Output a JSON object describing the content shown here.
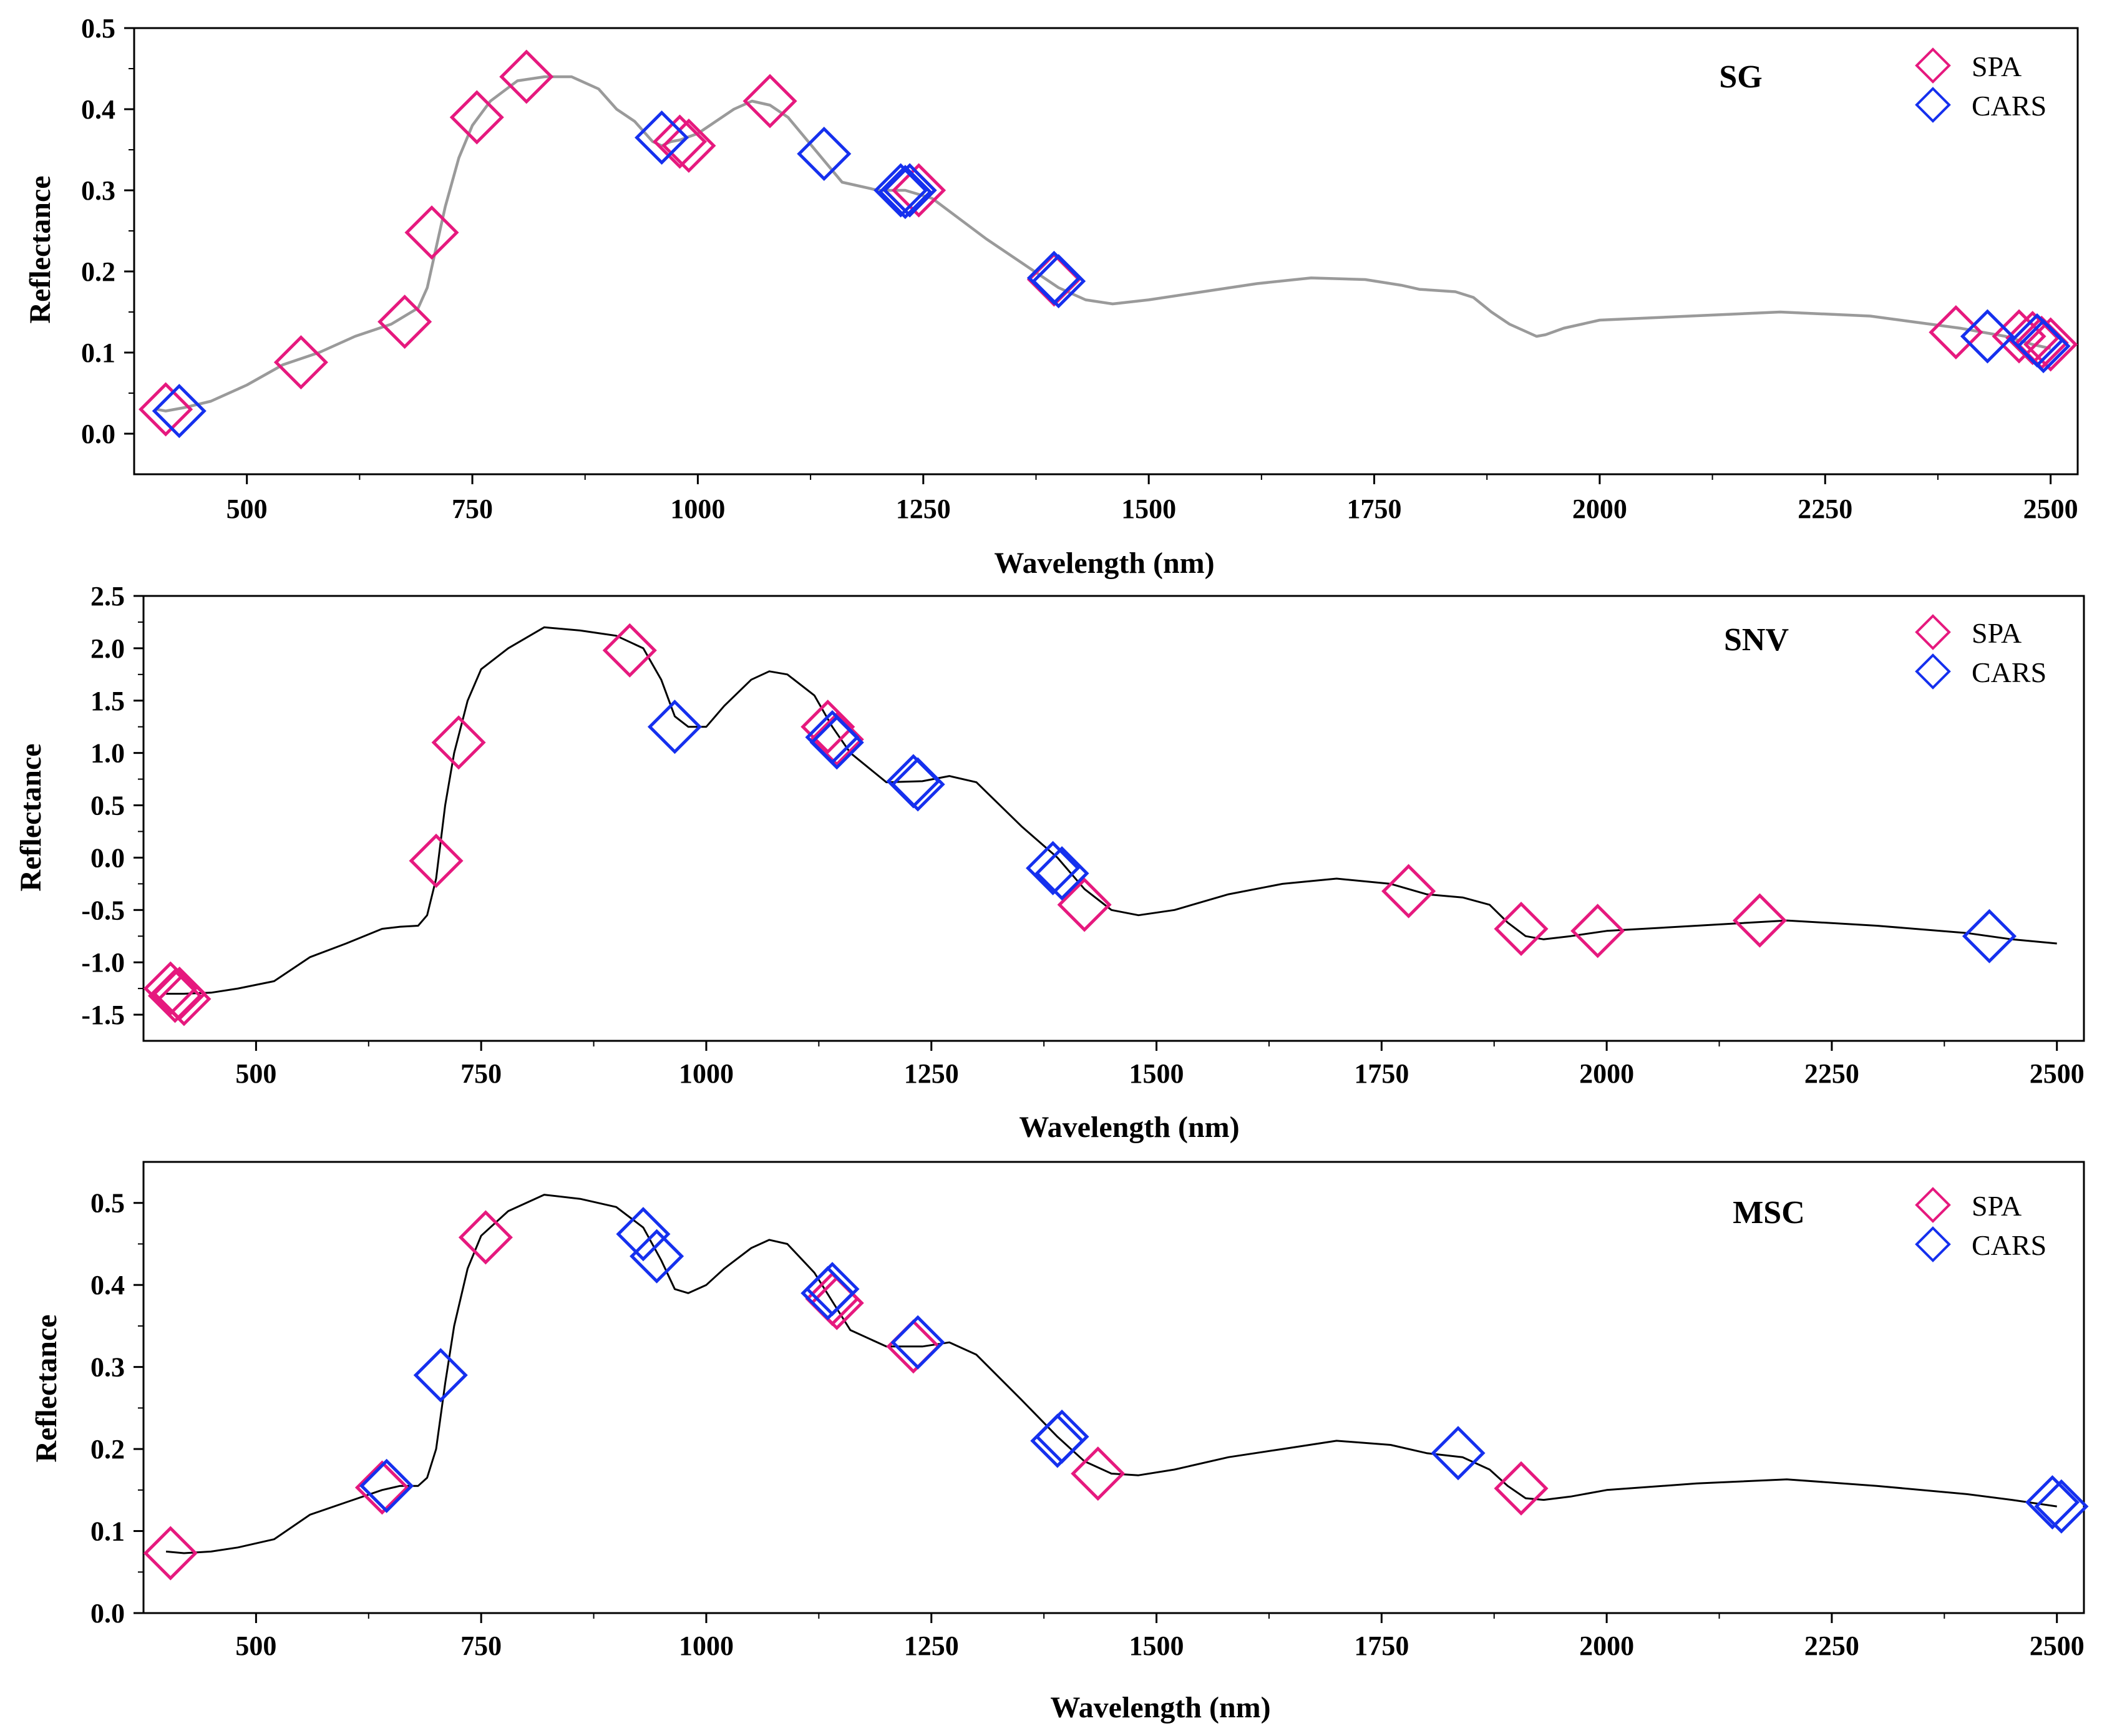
{
  "colors": {
    "spa": "#e6197e",
    "cars": "#1530ee",
    "sg_line": "#9a9a9a",
    "line": "#000000",
    "axis": "#000000"
  },
  "legend": {
    "spa_label": "SPA",
    "cars_label": "CARS"
  },
  "chart_data": [
    {
      "type": "line",
      "title": "SG",
      "xlabel": "Wavelength (nm)",
      "ylabel": "Reflectance",
      "xlim": [
        375,
        2530
      ],
      "ylim": [
        -0.05,
        0.5
      ],
      "xticks": [
        500,
        750,
        1000,
        1250,
        1500,
        1750,
        2000,
        2250,
        2500
      ],
      "yticks": [
        0.0,
        0.1,
        0.2,
        0.3,
        0.4,
        0.5
      ],
      "ytick_labels": [
        "0.0",
        "0.1",
        "0.2",
        "0.3",
        "0.4",
        "0.5"
      ],
      "legend_position": "top-right",
      "spectrum": {
        "x": [
          400,
          410,
          430,
          460,
          500,
          540,
          580,
          620,
          660,
          690,
          700,
          710,
          720,
          735,
          750,
          770,
          800,
          830,
          860,
          890,
          910,
          930,
          950,
          960,
          970,
          980,
          1000,
          1020,
          1040,
          1060,
          1080,
          1100,
          1130,
          1160,
          1200,
          1230,
          1260,
          1290,
          1320,
          1360,
          1400,
          1430,
          1460,
          1500,
          1560,
          1620,
          1680,
          1740,
          1780,
          1800,
          1840,
          1860,
          1880,
          1900,
          1920,
          1930,
          1940,
          1960,
          2000,
          2100,
          2200,
          2300,
          2400,
          2450,
          2480,
          2500
        ],
        "y": [
          0.03,
          0.028,
          0.032,
          0.04,
          0.06,
          0.085,
          0.1,
          0.12,
          0.135,
          0.155,
          0.18,
          0.23,
          0.28,
          0.34,
          0.38,
          0.41,
          0.435,
          0.44,
          0.44,
          0.425,
          0.4,
          0.385,
          0.36,
          0.355,
          0.36,
          0.362,
          0.37,
          0.385,
          0.4,
          0.41,
          0.405,
          0.39,
          0.35,
          0.31,
          0.3,
          0.3,
          0.29,
          0.265,
          0.24,
          0.21,
          0.18,
          0.165,
          0.16,
          0.165,
          0.175,
          0.185,
          0.192,
          0.19,
          0.183,
          0.178,
          0.175,
          0.168,
          0.15,
          0.135,
          0.125,
          0.12,
          0.122,
          0.13,
          0.14,
          0.145,
          0.15,
          0.145,
          0.13,
          0.12,
          0.11,
          0.105
        ]
      },
      "spa_points": [
        [
          410,
          0.03
        ],
        [
          560,
          0.088
        ],
        [
          675,
          0.138
        ],
        [
          705,
          0.248
        ],
        [
          755,
          0.39
        ],
        [
          810,
          0.44
        ],
        [
          980,
          0.36
        ],
        [
          990,
          0.355
        ],
        [
          1080,
          0.41
        ],
        [
          1235,
          0.3
        ],
        [
          1245,
          0.3
        ],
        [
          1395,
          0.19
        ],
        [
          2395,
          0.125
        ],
        [
          2465,
          0.12
        ],
        [
          2480,
          0.118
        ],
        [
          2490,
          0.112
        ],
        [
          2500,
          0.11
        ]
      ],
      "cars_points": [
        [
          425,
          0.028
        ],
        [
          960,
          0.365
        ],
        [
          1140,
          0.345
        ],
        [
          1225,
          0.3
        ],
        [
          1230,
          0.298
        ],
        [
          1235,
          0.3
        ],
        [
          1395,
          0.192
        ],
        [
          1400,
          0.188
        ],
        [
          2430,
          0.12
        ],
        [
          2485,
          0.115
        ],
        [
          2492,
          0.108
        ]
      ]
    },
    {
      "type": "line",
      "title": "SNV",
      "xlabel": "Wavelength (nm)",
      "ylabel": "Reflectance",
      "xlim": [
        375,
        2530
      ],
      "ylim": [
        -1.75,
        2.5
      ],
      "xticks": [
        500,
        750,
        1000,
        1250,
        1500,
        1750,
        2000,
        2250,
        2500
      ],
      "yticks": [
        -1.5,
        -1.0,
        -0.5,
        0.0,
        0.5,
        1.0,
        1.5,
        2.0,
        2.5
      ],
      "ytick_labels": [
        "-1.5",
        "-1.0",
        "-0.5",
        "0.0",
        "0.5",
        "1.0",
        "1.5",
        "2.0",
        "2.5"
      ],
      "legend_position": "top-right",
      "spectrum": {
        "x": [
          400,
          420,
          450,
          480,
          520,
          560,
          600,
          640,
          660,
          680,
          690,
          700,
          710,
          720,
          735,
          750,
          780,
          820,
          860,
          900,
          930,
          950,
          965,
          980,
          1000,
          1020,
          1050,
          1070,
          1090,
          1120,
          1140,
          1160,
          1200,
          1240,
          1270,
          1300,
          1350,
          1390,
          1420,
          1450,
          1480,
          1520,
          1580,
          1640,
          1700,
          1760,
          1800,
          1840,
          1870,
          1890,
          1910,
          1930,
          1960,
          2000,
          2100,
          2200,
          2300,
          2400,
          2450,
          2500
        ],
        "y": [
          -1.3,
          -1.3,
          -1.29,
          -1.25,
          -1.18,
          -0.95,
          -0.82,
          -0.68,
          -0.66,
          -0.65,
          -0.55,
          -0.2,
          0.5,
          1.0,
          1.5,
          1.8,
          2.0,
          2.2,
          2.17,
          2.12,
          2.0,
          1.7,
          1.35,
          1.25,
          1.25,
          1.45,
          1.7,
          1.78,
          1.75,
          1.55,
          1.25,
          1.0,
          0.72,
          0.73,
          0.78,
          0.72,
          0.3,
          0.0,
          -0.3,
          -0.5,
          -0.55,
          -0.5,
          -0.35,
          -0.25,
          -0.2,
          -0.25,
          -0.35,
          -0.38,
          -0.45,
          -0.62,
          -0.75,
          -0.78,
          -0.75,
          -0.7,
          -0.65,
          -0.6,
          -0.65,
          -0.72,
          -0.78,
          -0.82
        ]
      },
      "spa_points": [
        [
          405,
          -1.25
        ],
        [
          410,
          -1.32
        ],
        [
          415,
          -1.3
        ],
        [
          420,
          -1.35
        ],
        [
          700,
          -0.03
        ],
        [
          725,
          1.1
        ],
        [
          915,
          1.98
        ],
        [
          1135,
          1.25
        ],
        [
          1145,
          1.13
        ],
        [
          1420,
          -0.45
        ],
        [
          1780,
          -0.32
        ],
        [
          1905,
          -0.68
        ],
        [
          1990,
          -0.7
        ],
        [
          2170,
          -0.6
        ]
      ],
      "cars_points": [
        [
          965,
          1.25
        ],
        [
          1140,
          1.15
        ],
        [
          1145,
          1.1
        ],
        [
          1230,
          0.73
        ],
        [
          1235,
          0.7
        ],
        [
          1385,
          -0.1
        ],
        [
          1395,
          -0.15
        ],
        [
          2425,
          -0.75
        ]
      ]
    },
    {
      "type": "line",
      "title": "MSC",
      "xlabel": "Wavelength (nm)",
      "ylabel": "Reflectance",
      "xlim": [
        375,
        2530
      ],
      "ylim": [
        0.0,
        0.55
      ],
      "xticks": [
        500,
        750,
        1000,
        1250,
        1500,
        1750,
        2000,
        2250,
        2500
      ],
      "yticks": [
        0.0,
        0.1,
        0.2,
        0.3,
        0.4,
        0.5
      ],
      "ytick_labels": [
        "0.0",
        "0.1",
        "0.2",
        "0.3",
        "0.4",
        "0.5"
      ],
      "legend_position": "top-right",
      "spectrum": {
        "x": [
          400,
          420,
          450,
          480,
          520,
          560,
          600,
          640,
          660,
          680,
          690,
          700,
          710,
          720,
          735,
          750,
          780,
          820,
          860,
          900,
          930,
          950,
          965,
          980,
          1000,
          1020,
          1050,
          1070,
          1090,
          1120,
          1140,
          1160,
          1200,
          1240,
          1270,
          1300,
          1350,
          1390,
          1420,
          1450,
          1480,
          1520,
          1580,
          1640,
          1700,
          1760,
          1800,
          1840,
          1870,
          1890,
          1910,
          1930,
          1960,
          2000,
          2100,
          2200,
          2300,
          2400,
          2450,
          2500
        ],
        "y": [
          0.075,
          0.073,
          0.075,
          0.08,
          0.09,
          0.12,
          0.135,
          0.15,
          0.155,
          0.155,
          0.165,
          0.2,
          0.28,
          0.35,
          0.42,
          0.46,
          0.49,
          0.51,
          0.505,
          0.495,
          0.47,
          0.43,
          0.395,
          0.39,
          0.4,
          0.42,
          0.445,
          0.455,
          0.45,
          0.415,
          0.38,
          0.345,
          0.325,
          0.325,
          0.33,
          0.315,
          0.26,
          0.215,
          0.185,
          0.17,
          0.168,
          0.175,
          0.19,
          0.2,
          0.21,
          0.205,
          0.195,
          0.19,
          0.175,
          0.155,
          0.14,
          0.138,
          0.142,
          0.15,
          0.158,
          0.163,
          0.155,
          0.145,
          0.138,
          0.13
        ]
      },
      "spa_points": [
        [
          405,
          0.073
        ],
        [
          640,
          0.153
        ],
        [
          755,
          0.458
        ],
        [
          1140,
          0.383
        ],
        [
          1145,
          0.378
        ],
        [
          1230,
          0.325
        ],
        [
          1435,
          0.17
        ],
        [
          1905,
          0.152
        ]
      ],
      "cars_points": [
        [
          645,
          0.155
        ],
        [
          705,
          0.29
        ],
        [
          930,
          0.462
        ],
        [
          945,
          0.435
        ],
        [
          1135,
          0.39
        ],
        [
          1140,
          0.395
        ],
        [
          1235,
          0.33
        ],
        [
          1390,
          0.21
        ],
        [
          1395,
          0.215
        ],
        [
          1835,
          0.195
        ],
        [
          2495,
          0.135
        ],
        [
          2505,
          0.13
        ]
      ]
    }
  ]
}
